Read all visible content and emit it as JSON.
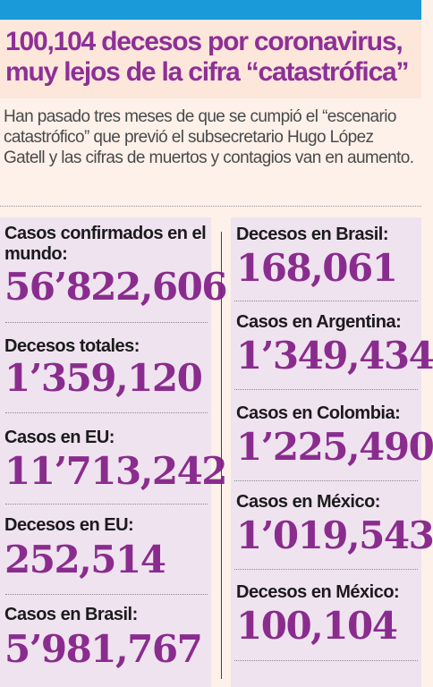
{
  "headline": "100,104 decesos por coronavirus, muy lejos de la cifra “catastrófica”",
  "lede": "Han pasado tres meses de que se cumpió el “escenario catastrófico” que previó el subsecretario Hugo López Gatell y las cifras de muertos y contagios van en aumento.",
  "colors": {
    "top_bar": "#1a9ad9",
    "headline": "#8e2f97",
    "values": "#8a2c8e",
    "panel_background": "#efe3ef",
    "header_background": "#fde7da"
  },
  "left_stats": [
    {
      "label": "Casos confirmados en el mundo:",
      "value": "56’822,606"
    },
    {
      "label": "Decesos totales:",
      "value": "1’359,120"
    },
    {
      "label": "Casos en EU:",
      "value": "11’713,242"
    },
    {
      "label": "Decesos en EU:",
      "value": "252,514"
    },
    {
      "label": "Casos en Brasil:",
      "value": "5’981,767"
    }
  ],
  "right_stats": [
    {
      "label": "Decesos en Brasil:",
      "value": "168,061"
    },
    {
      "label": "Casos en Argentina:",
      "value": "1’349,434"
    },
    {
      "label": "Casos en Colombia:",
      "value": "1’225,490"
    },
    {
      "label": "Casos en México:",
      "value": "1’019,543"
    },
    {
      "label": "Decesos en México:",
      "value": "100,104"
    }
  ]
}
